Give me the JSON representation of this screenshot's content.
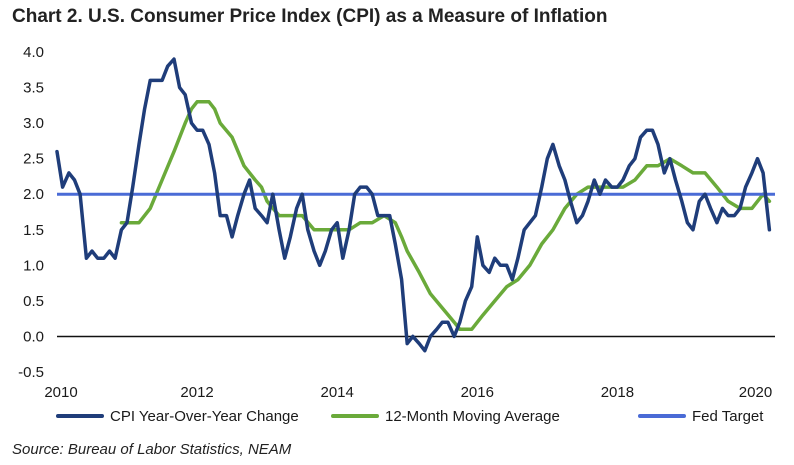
{
  "title": "Chart 2. U.S. Consumer Price Index (CPI) as a Measure of Inflation",
  "source": "Source: Bureau of Labor Statistics, NEAM",
  "colors": {
    "cpi": "#1f3d7a",
    "moving_avg": "#6aaa3a",
    "fed_target": "#4a6bd6",
    "zero_line": "#111111",
    "axis_text": "#1a1a1a"
  },
  "chart_data": {
    "type": "line",
    "title": "Chart 2. U.S. Consumer Price Index (CPI) as a Measure of Inflation",
    "xlabel": "",
    "ylabel": "",
    "xlim": [
      2010.0,
      2020.25
    ],
    "ylim": [
      -0.5,
      4.0
    ],
    "x_ticks": [
      2010,
      2012,
      2014,
      2016,
      2018,
      2020
    ],
    "x_tick_labels": [
      "2010",
      "2012",
      "2014",
      "2016",
      "2018",
      "2020"
    ],
    "y_ticks": [
      4.0,
      3.5,
      3.0,
      2.5,
      2.0,
      1.5,
      1.0,
      0.5,
      0.0,
      -0.5
    ],
    "y_tick_labels": [
      "4.0",
      "3.5",
      "3.0",
      "2.5",
      "2.0",
      "1.5",
      "1.0",
      "0.5",
      "0.0",
      "-0.5"
    ],
    "grid": false,
    "legend_position": "bottom",
    "series": [
      {
        "name": "CPI Year-Over-Year Change",
        "color": "#1f3d7a",
        "points": [
          [
            2010.0,
            2.6
          ],
          [
            2010.08,
            2.1
          ],
          [
            2010.17,
            2.3
          ],
          [
            2010.25,
            2.2
          ],
          [
            2010.33,
            2.0
          ],
          [
            2010.42,
            1.1
          ],
          [
            2010.5,
            1.2
          ],
          [
            2010.58,
            1.1
          ],
          [
            2010.67,
            1.1
          ],
          [
            2010.75,
            1.2
          ],
          [
            2010.83,
            1.1
          ],
          [
            2010.92,
            1.5
          ],
          [
            2011.0,
            1.6
          ],
          [
            2011.08,
            2.1
          ],
          [
            2011.17,
            2.7
          ],
          [
            2011.25,
            3.2
          ],
          [
            2011.33,
            3.6
          ],
          [
            2011.42,
            3.6
          ],
          [
            2011.5,
            3.6
          ],
          [
            2011.58,
            3.8
          ],
          [
            2011.67,
            3.9
          ],
          [
            2011.75,
            3.5
          ],
          [
            2011.83,
            3.4
          ],
          [
            2011.92,
            3.0
          ],
          [
            2012.0,
            2.9
          ],
          [
            2012.08,
            2.9
          ],
          [
            2012.17,
            2.7
          ],
          [
            2012.25,
            2.3
          ],
          [
            2012.33,
            1.7
          ],
          [
            2012.42,
            1.7
          ],
          [
            2012.5,
            1.4
          ],
          [
            2012.58,
            1.7
          ],
          [
            2012.67,
            2.0
          ],
          [
            2012.75,
            2.2
          ],
          [
            2012.83,
            1.8
          ],
          [
            2012.92,
            1.7
          ],
          [
            2013.0,
            1.6
          ],
          [
            2013.08,
            2.0
          ],
          [
            2013.17,
            1.5
          ],
          [
            2013.25,
            1.1
          ],
          [
            2013.33,
            1.4
          ],
          [
            2013.42,
            1.8
          ],
          [
            2013.5,
            2.0
          ],
          [
            2013.58,
            1.5
          ],
          [
            2013.67,
            1.2
          ],
          [
            2013.75,
            1.0
          ],
          [
            2013.83,
            1.2
          ],
          [
            2013.92,
            1.5
          ],
          [
            2014.0,
            1.6
          ],
          [
            2014.08,
            1.1
          ],
          [
            2014.17,
            1.5
          ],
          [
            2014.25,
            2.0
          ],
          [
            2014.33,
            2.1
          ],
          [
            2014.42,
            2.1
          ],
          [
            2014.5,
            2.0
          ],
          [
            2014.58,
            1.7
          ],
          [
            2014.67,
            1.7
          ],
          [
            2014.75,
            1.7
          ],
          [
            2014.83,
            1.3
          ],
          [
            2014.92,
            0.8
          ],
          [
            2015.0,
            -0.1
          ],
          [
            2015.08,
            0.0
          ],
          [
            2015.17,
            -0.1
          ],
          [
            2015.25,
            -0.2
          ],
          [
            2015.33,
            0.0
          ],
          [
            2015.42,
            0.1
          ],
          [
            2015.5,
            0.2
          ],
          [
            2015.58,
            0.2
          ],
          [
            2015.67,
            0.0
          ],
          [
            2015.75,
            0.2
          ],
          [
            2015.83,
            0.5
          ],
          [
            2015.92,
            0.7
          ],
          [
            2016.0,
            1.4
          ],
          [
            2016.08,
            1.0
          ],
          [
            2016.17,
            0.9
          ],
          [
            2016.25,
            1.1
          ],
          [
            2016.33,
            1.0
          ],
          [
            2016.42,
            1.0
          ],
          [
            2016.5,
            0.8
          ],
          [
            2016.58,
            1.1
          ],
          [
            2016.67,
            1.5
          ],
          [
            2016.75,
            1.6
          ],
          [
            2016.83,
            1.7
          ],
          [
            2016.92,
            2.1
          ],
          [
            2017.0,
            2.5
          ],
          [
            2017.08,
            2.7
          ],
          [
            2017.17,
            2.4
          ],
          [
            2017.25,
            2.2
          ],
          [
            2017.33,
            1.9
          ],
          [
            2017.42,
            1.6
          ],
          [
            2017.5,
            1.7
          ],
          [
            2017.58,
            1.9
          ],
          [
            2017.67,
            2.2
          ],
          [
            2017.75,
            2.0
          ],
          [
            2017.83,
            2.2
          ],
          [
            2017.92,
            2.1
          ],
          [
            2018.0,
            2.1
          ],
          [
            2018.08,
            2.2
          ],
          [
            2018.17,
            2.4
          ],
          [
            2018.25,
            2.5
          ],
          [
            2018.33,
            2.8
          ],
          [
            2018.42,
            2.9
          ],
          [
            2018.5,
            2.9
          ],
          [
            2018.58,
            2.7
          ],
          [
            2018.67,
            2.3
          ],
          [
            2018.75,
            2.5
          ],
          [
            2018.83,
            2.2
          ],
          [
            2018.92,
            1.9
          ],
          [
            2019.0,
            1.6
          ],
          [
            2019.08,
            1.5
          ],
          [
            2019.17,
            1.9
          ],
          [
            2019.25,
            2.0
          ],
          [
            2019.33,
            1.8
          ],
          [
            2019.42,
            1.6
          ],
          [
            2019.5,
            1.8
          ],
          [
            2019.58,
            1.7
          ],
          [
            2019.67,
            1.7
          ],
          [
            2019.75,
            1.8
          ],
          [
            2019.83,
            2.1
          ],
          [
            2019.92,
            2.3
          ],
          [
            2020.0,
            2.5
          ],
          [
            2020.08,
            2.3
          ],
          [
            2020.17,
            1.5
          ]
        ]
      },
      {
        "name": "12-Month Moving Average",
        "color": "#6aaa3a",
        "points": [
          [
            2010.92,
            1.6
          ],
          [
            2011.0,
            1.6
          ],
          [
            2011.17,
            1.6
          ],
          [
            2011.33,
            1.8
          ],
          [
            2011.5,
            2.2
          ],
          [
            2011.67,
            2.6
          ],
          [
            2011.83,
            3.0
          ],
          [
            2011.92,
            3.2
          ],
          [
            2012.0,
            3.3
          ],
          [
            2012.17,
            3.3
          ],
          [
            2012.25,
            3.2
          ],
          [
            2012.33,
            3.0
          ],
          [
            2012.5,
            2.8
          ],
          [
            2012.67,
            2.4
          ],
          [
            2012.83,
            2.2
          ],
          [
            2012.92,
            2.1
          ],
          [
            2013.0,
            1.9
          ],
          [
            2013.17,
            1.7
          ],
          [
            2013.33,
            1.7
          ],
          [
            2013.5,
            1.7
          ],
          [
            2013.67,
            1.5
          ],
          [
            2013.83,
            1.5
          ],
          [
            2014.0,
            1.5
          ],
          [
            2014.17,
            1.5
          ],
          [
            2014.33,
            1.6
          ],
          [
            2014.5,
            1.6
          ],
          [
            2014.67,
            1.7
          ],
          [
            2014.83,
            1.6
          ],
          [
            2014.92,
            1.4
          ],
          [
            2015.0,
            1.2
          ],
          [
            2015.17,
            0.9
          ],
          [
            2015.33,
            0.6
          ],
          [
            2015.5,
            0.4
          ],
          [
            2015.67,
            0.2
          ],
          [
            2015.75,
            0.1
          ],
          [
            2015.92,
            0.1
          ],
          [
            2016.08,
            0.3
          ],
          [
            2016.25,
            0.5
          ],
          [
            2016.42,
            0.7
          ],
          [
            2016.58,
            0.8
          ],
          [
            2016.75,
            1.0
          ],
          [
            2016.92,
            1.3
          ],
          [
            2017.08,
            1.5
          ],
          [
            2017.25,
            1.8
          ],
          [
            2017.42,
            2.0
          ],
          [
            2017.58,
            2.1
          ],
          [
            2017.75,
            2.1
          ],
          [
            2017.92,
            2.1
          ],
          [
            2018.08,
            2.1
          ],
          [
            2018.25,
            2.2
          ],
          [
            2018.42,
            2.4
          ],
          [
            2018.58,
            2.4
          ],
          [
            2018.75,
            2.5
          ],
          [
            2018.92,
            2.4
          ],
          [
            2019.08,
            2.3
          ],
          [
            2019.25,
            2.3
          ],
          [
            2019.42,
            2.1
          ],
          [
            2019.58,
            1.9
          ],
          [
            2019.75,
            1.8
          ],
          [
            2019.92,
            1.8
          ],
          [
            2020.08,
            2.0
          ],
          [
            2020.17,
            1.9
          ]
        ]
      },
      {
        "name": "Fed Target",
        "color": "#4a6bd6",
        "points": [
          [
            2010.0,
            2.0
          ],
          [
            2020.25,
            2.0
          ]
        ]
      }
    ]
  }
}
